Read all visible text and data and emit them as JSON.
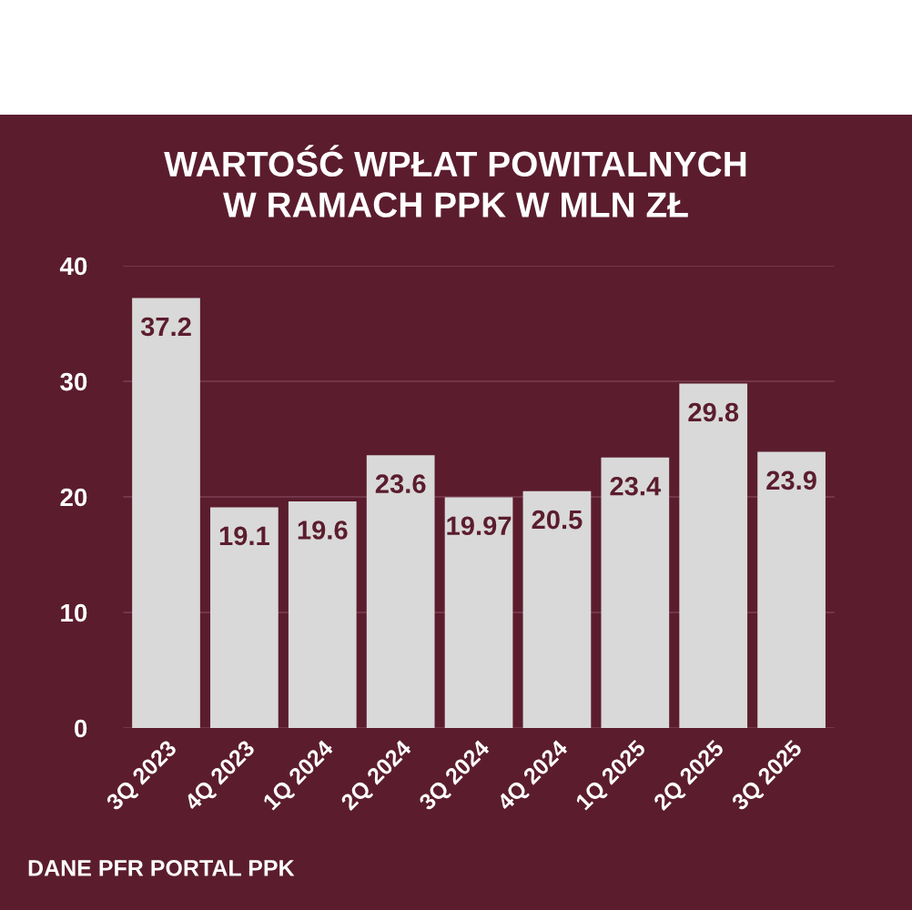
{
  "chart_data": {
    "type": "bar",
    "title": "WARTOŚĆ WPŁAT POWITALNYCH\nW RAMACH PPK W MLN ZŁ",
    "categories": [
      "3Q 2023",
      "4Q 2023",
      "1Q 2024",
      "2Q 2024",
      "3Q 2024",
      "4Q 2024",
      "1Q 2025",
      "2Q 2025",
      "3Q 2025"
    ],
    "values": [
      37.2,
      19.1,
      19.6,
      23.6,
      19.97,
      20.5,
      23.4,
      29.8,
      23.9
    ],
    "color": "#d9d9d9",
    "ylim": [
      0,
      40
    ],
    "yticks": [
      0,
      10,
      20,
      30,
      40
    ],
    "grid": "y",
    "data_labels": true,
    "annotations": [
      "DANE PFR PORTAL PPK"
    ]
  }
}
